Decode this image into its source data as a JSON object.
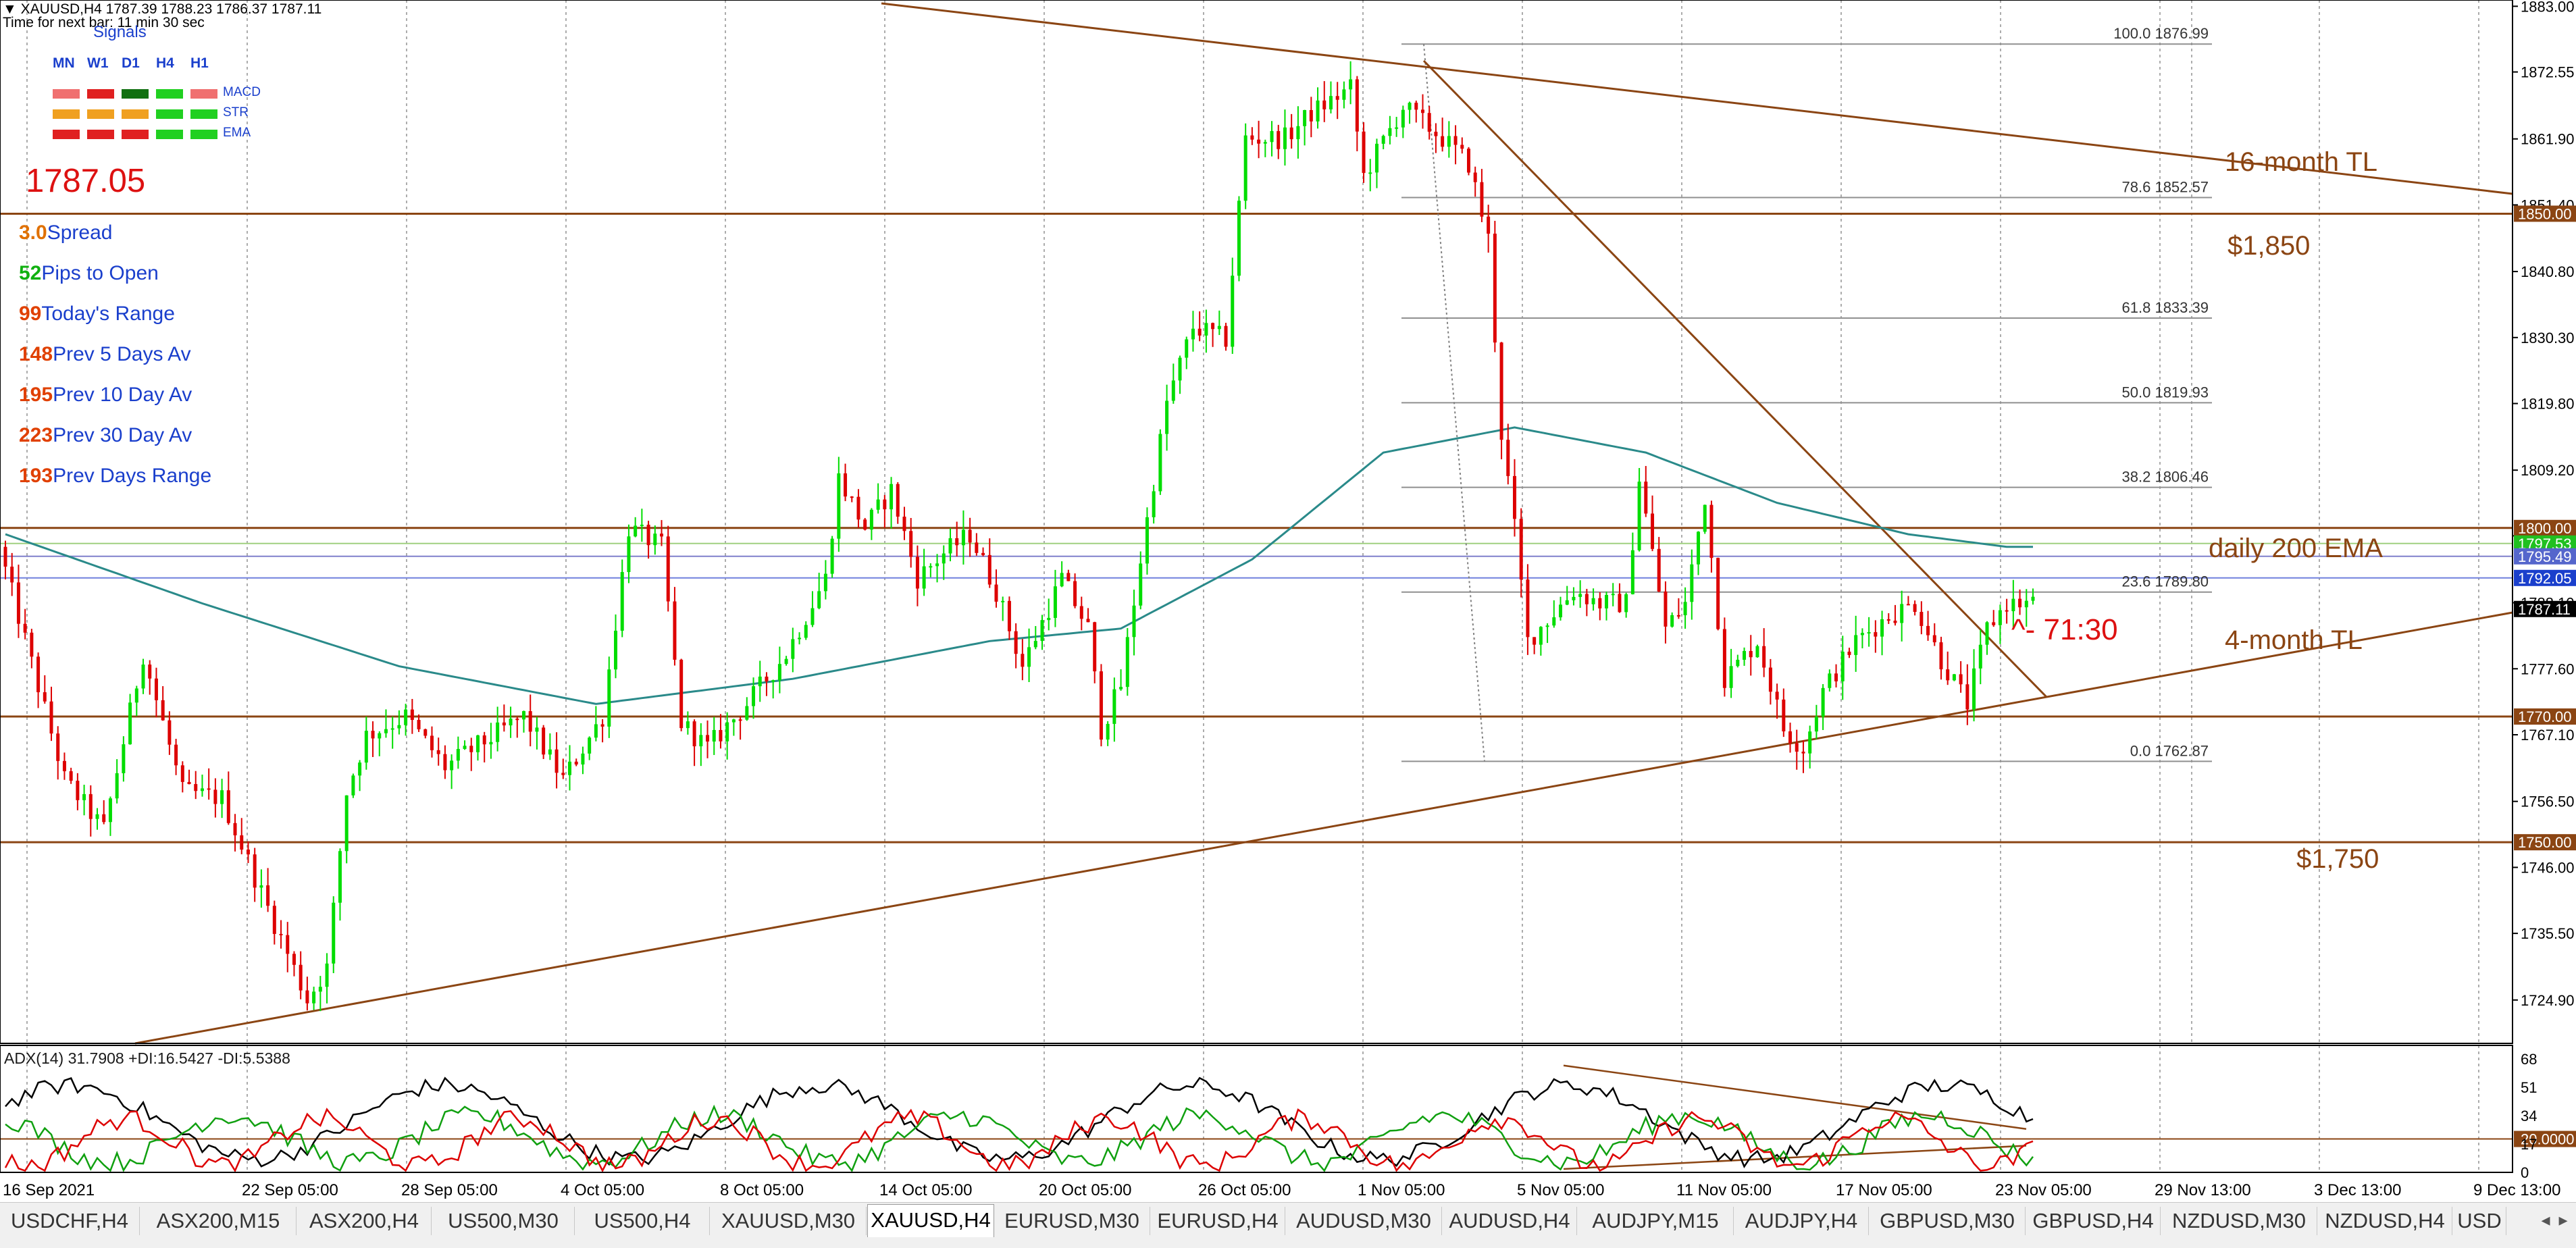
{
  "header": {
    "symbol_line": "XAUUSD,H4  1787.39 1788.23 1786.37 1787.11",
    "timer": "Time for next bar: 11 min 30 sec",
    "signals_title": "Signals",
    "price_big": "1787.05"
  },
  "signals": {
    "columns": [
      "MN",
      "W1",
      "D1",
      "H4",
      "H1"
    ],
    "rows": [
      {
        "label": "MACD",
        "colors": [
          "#f07070",
          "#e02020",
          "#107010",
          "#20d020",
          "#f07070"
        ]
      },
      {
        "label": "STR",
        "colors": [
          "#f0a020",
          "#f0a020",
          "#f0a020",
          "#20d020",
          "#20d020"
        ]
      },
      {
        "label": "EMA",
        "colors": [
          "#e02020",
          "#e02020",
          "#e02020",
          "#20d020",
          "#20d020"
        ]
      }
    ]
  },
  "stats": [
    {
      "value": "3.0",
      "label": "Spread",
      "color": "#e07000"
    },
    {
      "value": "52",
      "label": "Pips to Open",
      "color": "#10b010"
    },
    {
      "value": "99",
      "label": "Today's Range",
      "color": "#e04000"
    },
    {
      "value": "148",
      "label": "Prev 5 Days Av",
      "color": "#e04000"
    },
    {
      "value": "195",
      "label": "Prev 10 Day Av",
      "color": "#e04000"
    },
    {
      "value": "223",
      "label": "Prev 30 Day Av",
      "color": "#e04000"
    },
    {
      "value": "193",
      "label": "Prev Days Range",
      "color": "#e04000"
    }
  ],
  "price_axis": {
    "ticks": [
      "1883.00",
      "1872.55",
      "1861.90",
      "1851.40",
      "1840.80",
      "1830.30",
      "1819.80",
      "1809.20",
      "1798.75",
      "1788.10",
      "1777.60",
      "1767.10",
      "1756.50",
      "1746.00",
      "1735.50",
      "1724.90"
    ],
    "tags": [
      {
        "text": "1850.00",
        "bg": "#8b4513"
      },
      {
        "text": "1800.00",
        "bg": "#8b4513"
      },
      {
        "text": "1797.53",
        "bg": "#20c020"
      },
      {
        "text": "1795.49",
        "bg": "#5566cc"
      },
      {
        "text": "1792.05",
        "bg": "#1a3fcc"
      },
      {
        "text": "1787.11",
        "bg": "#000000"
      },
      {
        "text": "1770.00",
        "bg": "#8b4513"
      },
      {
        "text": "1750.00",
        "bg": "#8b4513"
      }
    ]
  },
  "fibonacci": [
    {
      "level": "100.0",
      "price": "1876.99"
    },
    {
      "level": "78.6",
      "price": "1852.57"
    },
    {
      "level": "61.8",
      "price": "1833.39"
    },
    {
      "level": "50.0",
      "price": "1819.93"
    },
    {
      "level": "38.2",
      "price": "1806.46"
    },
    {
      "level": "23.6",
      "price": "1789.80"
    },
    {
      "level": "0.0",
      "price": "1762.87"
    }
  ],
  "annotations": {
    "tl16": "16-month TL",
    "p1850": "$1,850",
    "ema200": "daily 200 EMA",
    "tl4": "4-month TL",
    "p1750": "$1,750",
    "count": "- 71:30"
  },
  "indicator": {
    "label": "ADX(14) 31.7908 +DI:16.5427 -DI:5.5388",
    "ticks": [
      "68",
      "51",
      "34",
      "20.0000",
      "17",
      "0"
    ]
  },
  "time_axis": [
    "16 Sep 2021",
    "22 Sep 05:00",
    "28 Sep 05:00",
    "4 Oct 05:00",
    "8 Oct 05:00",
    "14 Oct 05:00",
    "20 Oct 05:00",
    "26 Oct 05:00",
    "1 Nov 05:00",
    "5 Nov 05:00",
    "11 Nov 05:00",
    "17 Nov 05:00",
    "23 Nov 05:00",
    "29 Nov 13:00",
    "3 Dec 13:00",
    "9 Dec 13:00"
  ],
  "tabs": [
    "USDCHF,H4",
    "ASX200,M15",
    "ASX200,H4",
    "US500,M30",
    "US500,H4",
    "XAUUSD,M30",
    "XAUUSD,H4",
    "EURUSD,M30",
    "EURUSD,H4",
    "AUDUSD,M30",
    "AUDUSD,H4",
    "AUDJPY,M15",
    "AUDJPY,H4",
    "GBPUSD,M30",
    "GBPUSD,H4",
    "NZDUSD,M30",
    "NZDUSD,H4",
    "USD"
  ],
  "active_tab": "XAUUSD,H4",
  "colors": {
    "bull": "#00dd00",
    "bear": "#dd0000",
    "trendline": "#8b4513",
    "ema": "#2a8a8a",
    "grid": "#909090",
    "adx": "#000000",
    "plus_di": "#10a010",
    "minus_di": "#dd0000"
  },
  "chart_data": {
    "type": "candlestick",
    "title": "XAUUSD,H4",
    "x_range": [
      "16 Sep 2021",
      "9 Dec 13:00"
    ],
    "y_range": [
      1718,
      1884
    ],
    "levels": [
      1850,
      1800,
      1770,
      1750
    ],
    "last_price": 1787.11,
    "fib_high": 1876.99,
    "fib_low": 1762.87,
    "path_key_points": [
      [
        0,
        1797
      ],
      [
        10,
        1760
      ],
      [
        16,
        1752
      ],
      [
        22,
        1780
      ],
      [
        28,
        1758
      ],
      [
        34,
        1757
      ],
      [
        40,
        1742
      ],
      [
        47,
        1725
      ],
      [
        50,
        1730
      ],
      [
        53,
        1758
      ],
      [
        56,
        1767
      ],
      [
        62,
        1770
      ],
      [
        68,
        1762
      ],
      [
        74,
        1766
      ],
      [
        80,
        1770
      ],
      [
        86,
        1760
      ],
      [
        92,
        1770
      ],
      [
        96,
        1800
      ],
      [
        101,
        1797
      ],
      [
        104,
        1769
      ],
      [
        108,
        1765
      ],
      [
        114,
        1772
      ],
      [
        120,
        1780
      ],
      [
        126,
        1792
      ],
      [
        128,
        1808
      ],
      [
        132,
        1800
      ],
      [
        136,
        1806
      ],
      [
        140,
        1792
      ],
      [
        144,
        1796
      ],
      [
        148,
        1799
      ],
      [
        152,
        1790
      ],
      [
        156,
        1778
      ],
      [
        162,
        1792
      ],
      [
        166,
        1784
      ],
      [
        168,
        1768
      ],
      [
        171,
        1775
      ],
      [
        174,
        1795
      ],
      [
        178,
        1820
      ],
      [
        182,
        1832
      ],
      [
        187,
        1830
      ],
      [
        190,
        1862
      ],
      [
        196,
        1862
      ],
      [
        200,
        1866
      ],
      [
        206,
        1870
      ],
      [
        208,
        1856
      ],
      [
        214,
        1867
      ],
      [
        220,
        1862
      ],
      [
        224,
        1858
      ],
      [
        227,
        1846
      ],
      [
        229,
        1815
      ],
      [
        231,
        1800
      ],
      [
        233,
        1782
      ],
      [
        240,
        1790
      ],
      [
        244,
        1788
      ],
      [
        248,
        1788
      ],
      [
        250,
        1808
      ],
      [
        254,
        1784
      ],
      [
        257,
        1788
      ],
      [
        260,
        1805
      ],
      [
        263,
        1776
      ],
      [
        268,
        1782
      ],
      [
        272,
        1768
      ],
      [
        275,
        1765
      ],
      [
        278,
        1774
      ],
      [
        283,
        1782
      ],
      [
        288,
        1786
      ],
      [
        292,
        1788
      ],
      [
        296,
        1779
      ],
      [
        300,
        1772
      ],
      [
        303,
        1784
      ],
      [
        306,
        1788
      ]
    ],
    "ema200_key_points": [
      [
        0,
        1799
      ],
      [
        30,
        1788
      ],
      [
        60,
        1778
      ],
      [
        90,
        1772
      ],
      [
        120,
        1776
      ],
      [
        150,
        1782
      ],
      [
        170,
        1784
      ],
      [
        190,
        1795
      ],
      [
        210,
        1812
      ],
      [
        230,
        1816
      ],
      [
        250,
        1812
      ],
      [
        270,
        1804
      ],
      [
        290,
        1799
      ],
      [
        305,
        1797
      ]
    ]
  }
}
